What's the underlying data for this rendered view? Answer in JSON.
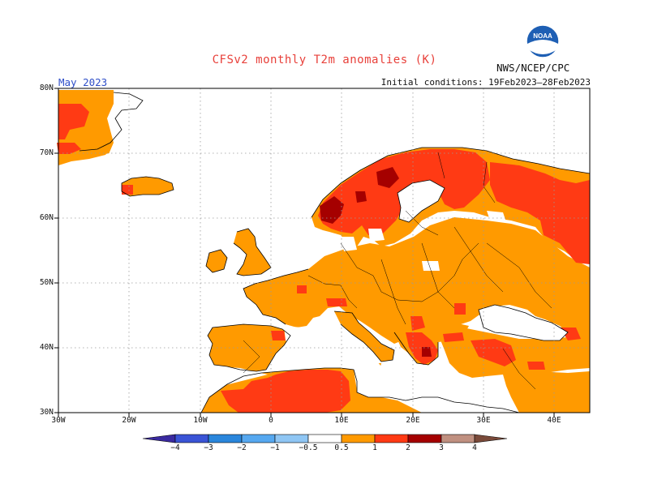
{
  "header": {
    "title": "CFSv2 monthly T2m anomalies (K)",
    "month": "May 2023",
    "initial_conditions": "Initial conditions: 19Feb2023–28Feb2023",
    "agency": "NWS/NCEP/CPC",
    "logo_text": "NOAA"
  },
  "map": {
    "region": "Europe",
    "lon_range": [
      -30,
      45
    ],
    "lat_range": [
      30,
      80
    ],
    "lat_labels": [
      "80N",
      "70N",
      "60N",
      "50N",
      "40N",
      "30N"
    ],
    "lon_labels": [
      "30W",
      "20W",
      "10W",
      "0",
      "10E",
      "20E",
      "30E",
      "40E"
    ],
    "ocean_color": "#ffffff",
    "grid": "dotted"
  },
  "colorbar": {
    "labels": [
      "−4",
      "−3",
      "−2",
      "−1",
      "−0.5",
      "0.5",
      "1",
      "2",
      "3",
      "4"
    ],
    "colors": [
      "#3a2aa0",
      "#3a54d6",
      "#2a86dc",
      "#56a8f0",
      "#8fc6f4",
      "#ffffff",
      "#ff9a00",
      "#ff3a14",
      "#a50000",
      "#c09080",
      "#7a4a3a"
    ]
  },
  "legend_classes": {
    "pos1": "#ff9a00",
    "pos2": "#ff3a14",
    "pos3": "#a50000"
  }
}
